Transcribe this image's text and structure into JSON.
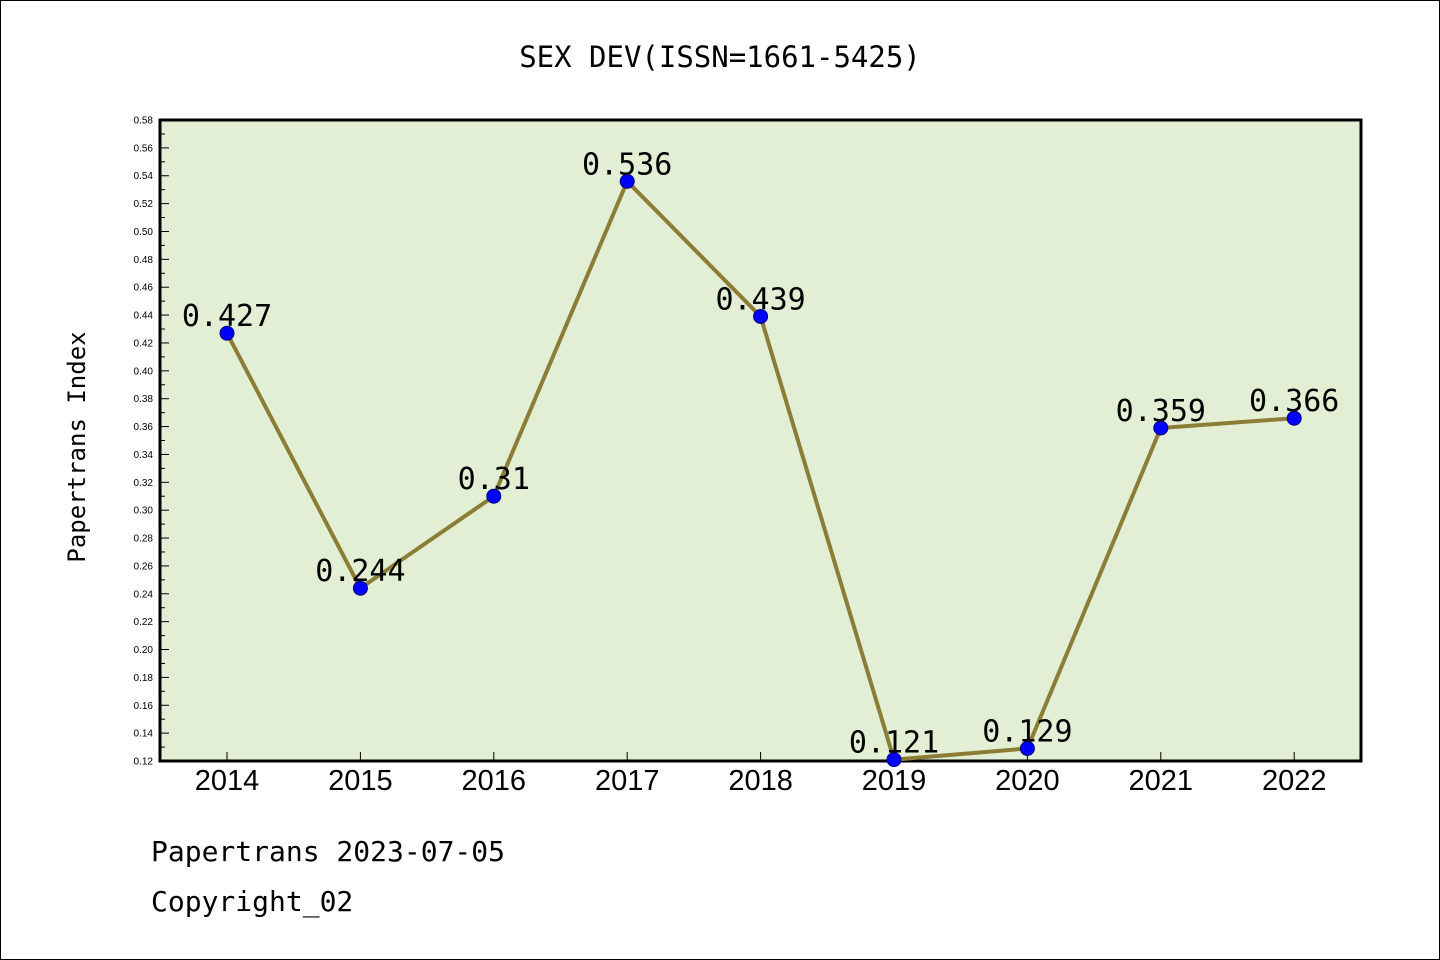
{
  "footer": {
    "line1": "Papertrans 2023-07-05",
    "line2": "Copyright_02"
  },
  "chart_data": {
    "type": "line",
    "title": "SEX DEV(ISSN=1661-5425)",
    "xlabel": "",
    "ylabel": "Papertrans Index",
    "categories": [
      "2014",
      "2015",
      "2016",
      "2017",
      "2018",
      "2019",
      "2020",
      "2021",
      "2022"
    ],
    "values": [
      0.427,
      0.244,
      0.31,
      0.536,
      0.439,
      0.121,
      0.129,
      0.359,
      0.366
    ],
    "data_labels": [
      "0.427",
      "0.244",
      "0.31",
      "0.536",
      "0.439",
      "0.121",
      "0.129",
      "0.359",
      "0.366"
    ],
    "ylim": [
      0.12,
      0.58
    ],
    "yticks": [
      "0.12",
      "0.14",
      "0.16",
      "0.18",
      "0.20",
      "0.22",
      "0.24",
      "0.26",
      "0.28",
      "0.30",
      "0.32",
      "0.34",
      "0.36",
      "0.38",
      "0.40",
      "0.42",
      "0.44",
      "0.46",
      "0.48",
      "0.50",
      "0.52",
      "0.54",
      "0.56",
      "0.58"
    ],
    "grid": false,
    "legend": "none",
    "colors": {
      "plot_background": "#e2efd5",
      "line": "#8b7d35",
      "marker": "#0000ff",
      "marker_edge": "#000080"
    }
  }
}
